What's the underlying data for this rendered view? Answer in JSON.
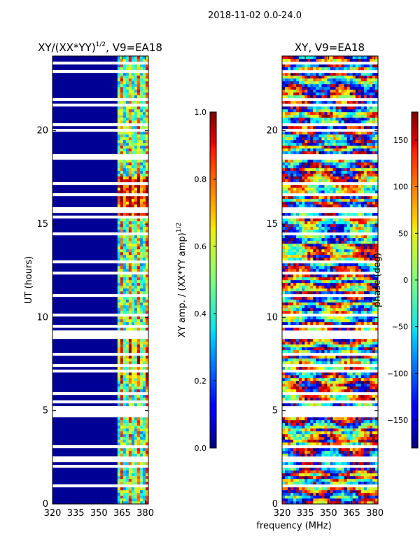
{
  "suptitle": "2018-11-02 0.0-24.0",
  "chart_data": [
    {
      "type": "heatmap",
      "title": "XY/(XX*YY)",
      "title_exponent": "1/2",
      "title_suffix": ", V9=EA18",
      "xlabel": "",
      "ylabel": "UT (hours)",
      "xlim": [
        320,
        382
      ],
      "ylim": [
        0,
        24
      ],
      "xticks": [
        320,
        335,
        350,
        365,
        380
      ],
      "yticks": [
        0,
        5,
        10,
        15,
        20
      ],
      "signal_band_mhz": [
        362,
        382
      ],
      "colorbar": {
        "label": "XY amp. / (XX*YY amp)",
        "label_exponent": "1/2",
        "range": [
          0,
          1
        ],
        "ticks": [
          "0.0",
          "0.2",
          "0.4",
          "0.6",
          "0.8",
          "1.0"
        ]
      }
    },
    {
      "type": "heatmap",
      "title": "XY, V9=EA18",
      "xlabel": "frequency (MHz)",
      "ylabel": "",
      "xlim": [
        320,
        382
      ],
      "ylim": [
        0,
        24
      ],
      "xticks": [
        320,
        335,
        350,
        365,
        380
      ],
      "yticks": [
        0,
        5,
        10,
        15,
        20
      ],
      "colorbar": {
        "label": "phase (deg)",
        "range": [
          -180,
          180
        ],
        "ticks": [
          "-150",
          "-100",
          "-50",
          "0",
          "50",
          "100",
          "150"
        ]
      }
    }
  ],
  "colors": {
    "low": "#00007f",
    "mid": "#7fff7f",
    "high": "#7f0000",
    "gap": "#ffffff"
  }
}
